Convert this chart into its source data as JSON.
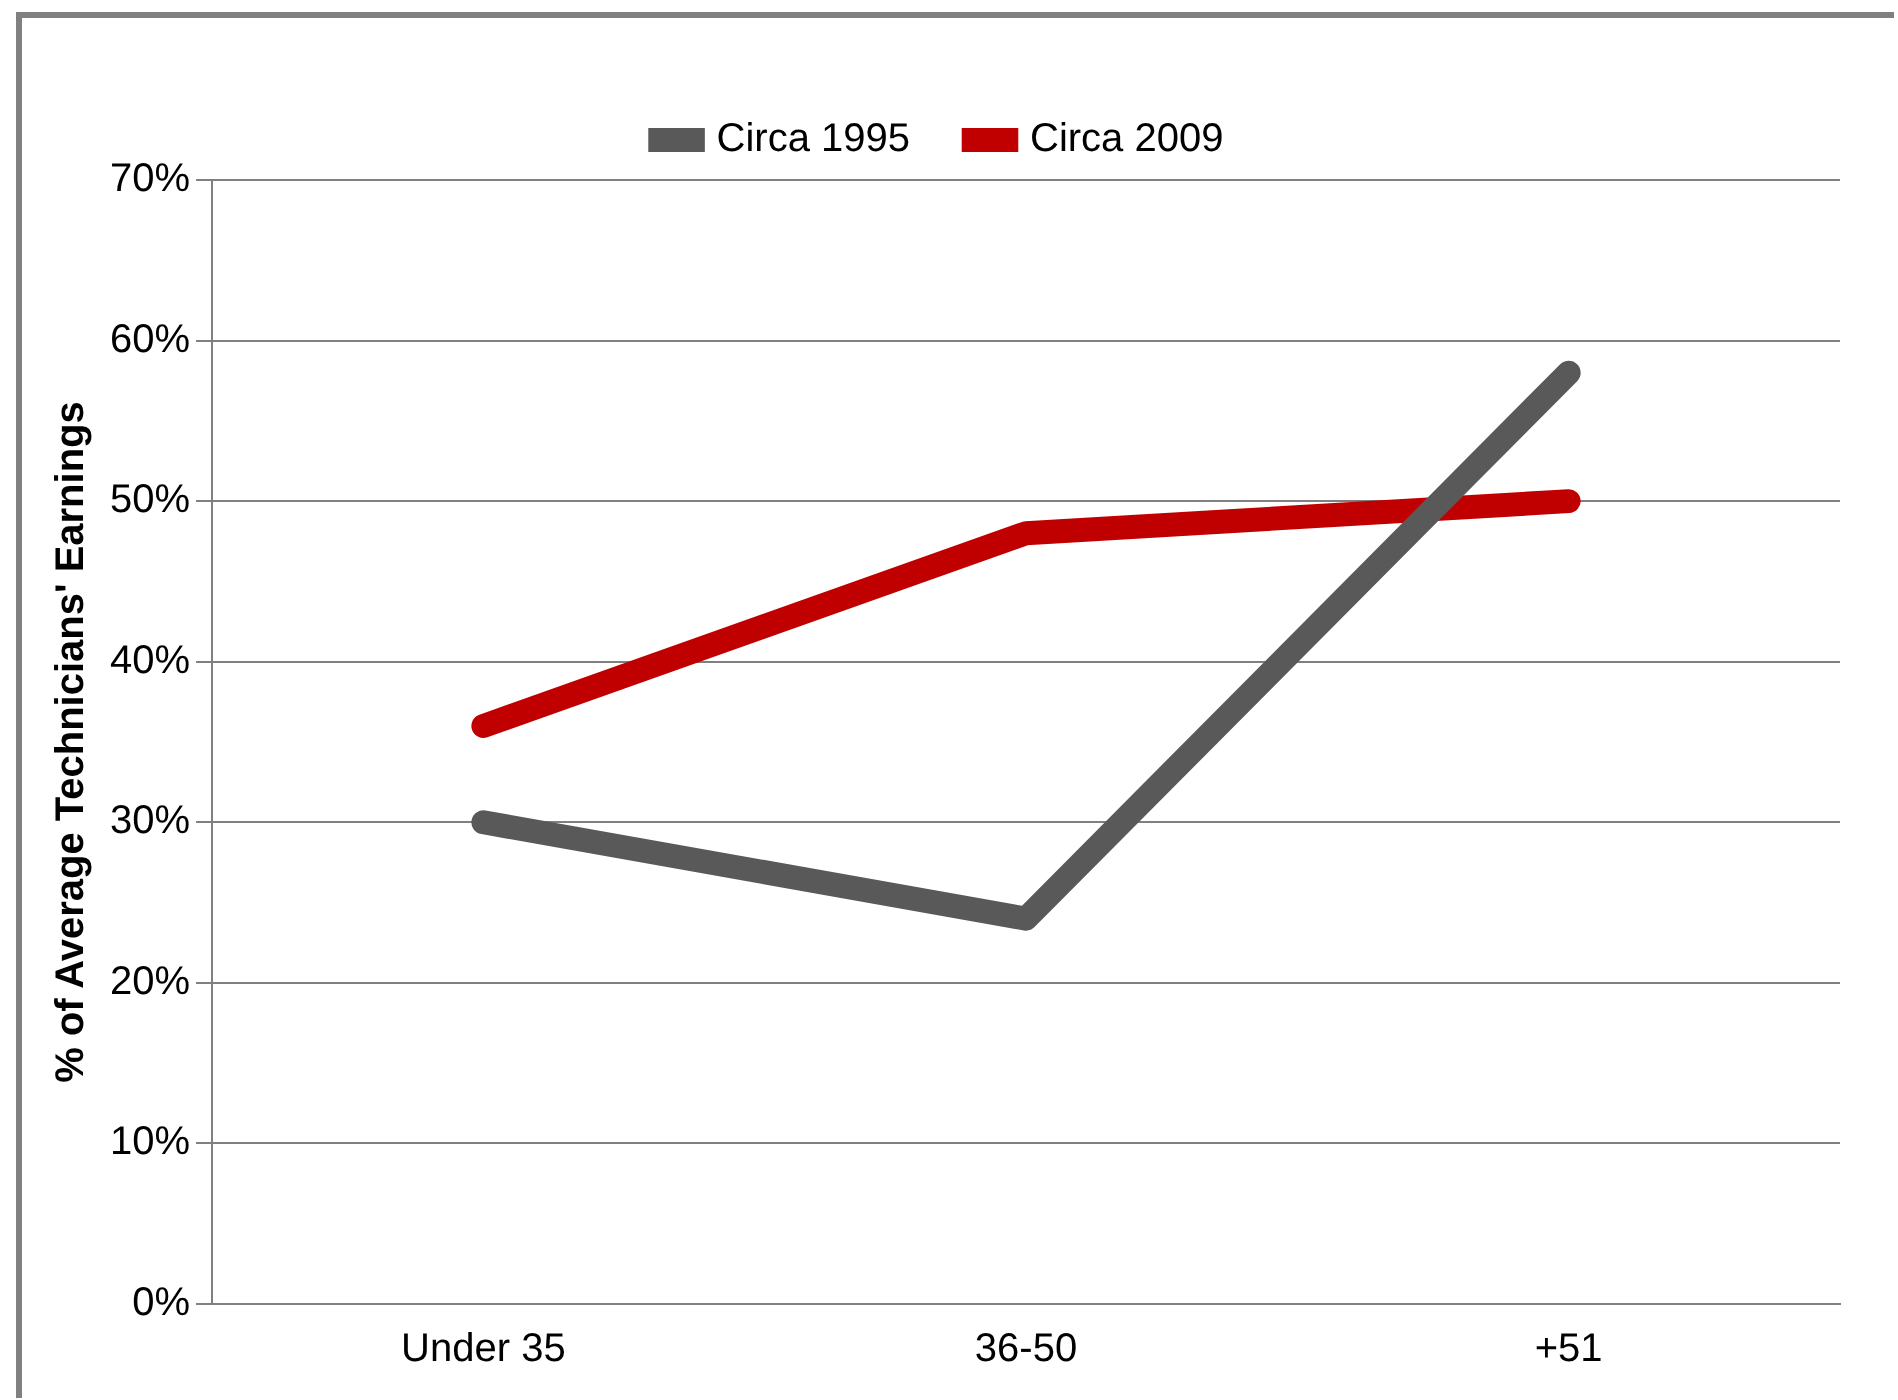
{
  "chart_data": {
    "type": "line",
    "ylabel": "% of Average Technicians' Earnings",
    "categories": [
      "Under 35",
      "36-50",
      "+51"
    ],
    "series": [
      {
        "name": "Circa 1995",
        "color": "#595959",
        "values": [
          30,
          24,
          58
        ]
      },
      {
        "name": "Circa 2009",
        "color": "#c00000",
        "values": [
          36,
          48,
          50
        ]
      }
    ],
    "ylim": [
      0,
      70
    ],
    "yticks": [
      {
        "value": 0,
        "label": "0%"
      },
      {
        "value": 10,
        "label": "10%"
      },
      {
        "value": 20,
        "label": "20%"
      },
      {
        "value": 30,
        "label": "30%"
      },
      {
        "value": 40,
        "label": "40%"
      },
      {
        "value": 50,
        "label": "50%"
      },
      {
        "value": 60,
        "label": "60%"
      },
      {
        "value": 70,
        "label": "70%"
      }
    ],
    "grid": "y",
    "legend": "top",
    "marker": "none",
    "line_style": "solid"
  }
}
